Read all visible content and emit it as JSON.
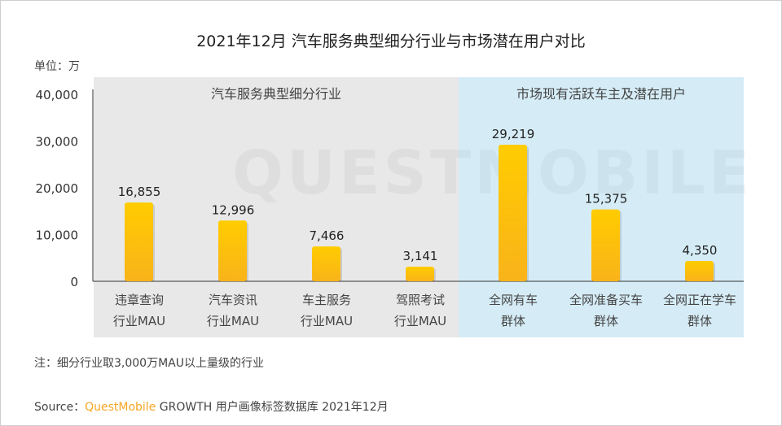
{
  "title": "2021年12月 汽车服务典型细分行业与市场潜在用户对比",
  "unit": "单位：万",
  "watermark": "QUESTMOBILE",
  "groups": [
    {
      "label": "汽车服务典型细分行业",
      "color": "#e8e8e8"
    },
    {
      "label": "市场现有活跃车主及潜在用户",
      "color": "#d5ecf6"
    }
  ],
  "note": "注：细分行业取3,000万MAU以上量级的行业",
  "source": {
    "prefix": "Source：",
    "brand": "QuestMobile",
    "rest": " GROWTH 用户画像标签数据库 2021年12月"
  },
  "colors": {
    "bar_top": "#ffcc00",
    "bar_bottom": "#f9b31a",
    "brand": "#f5a623"
  },
  "chart_data": {
    "type": "bar",
    "title": "2021年12月 汽车服务典型细分行业与市场潜在用户对比",
    "ylabel": "单位：万",
    "ylim": [
      0,
      40000
    ],
    "yticks": [
      "0",
      "10,000",
      "20,000",
      "30,000",
      "40,000"
    ],
    "categories": [
      [
        "违章查询",
        "行业MAU"
      ],
      [
        "汽车资讯",
        "行业MAU"
      ],
      [
        "车主服务",
        "行业MAU"
      ],
      [
        "驾照考试",
        "行业MAU"
      ],
      [
        "全网有车",
        "群体"
      ],
      [
        "全网准备买车",
        "群体"
      ],
      [
        "全网正在学车",
        "群体"
      ]
    ],
    "values": [
      16855,
      12996,
      7466,
      3141,
      29219,
      15375,
      4350
    ],
    "labels": [
      "16,855",
      "12,996",
      "7,466",
      "3,141",
      "29,219",
      "15,375",
      "4,350"
    ],
    "grid": false
  }
}
